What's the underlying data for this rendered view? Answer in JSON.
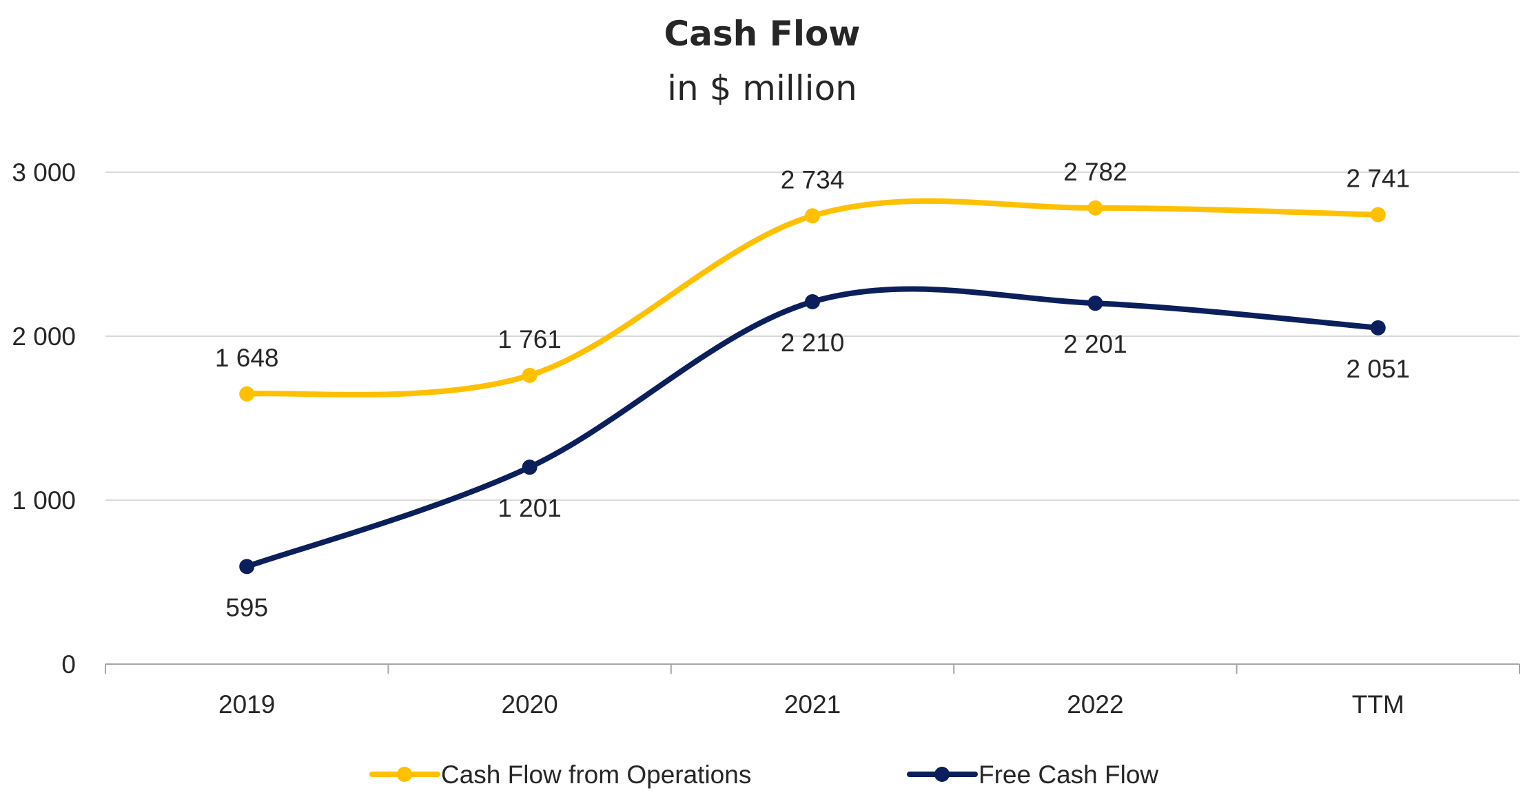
{
  "chart_data": {
    "type": "line",
    "title": "Cash Flow",
    "subtitle": "in $ million",
    "categories": [
      "2019",
      "2020",
      "2021",
      "2022",
      "TTM"
    ],
    "ylim": [
      0,
      3000
    ],
    "yticks": [
      0,
      1000,
      2000,
      3000
    ],
    "ytick_labels": [
      "0",
      "1 000",
      "2 000",
      "3 000"
    ],
    "grid": true,
    "legend_position": "bottom",
    "series": [
      {
        "name": "Cash Flow from Operations",
        "color": "#FFC000",
        "values": [
          1648,
          1761,
          2734,
          2782,
          2741
        ],
        "labels": [
          "1 648",
          "1 761",
          "2 734",
          "2 782",
          "2 741"
        ]
      },
      {
        "name": "Free Cash Flow",
        "color": "#0B1F5C",
        "values": [
          595,
          1201,
          2210,
          2201,
          2051
        ],
        "labels": [
          "595",
          "1 201",
          "2 210",
          "2 201",
          "2 051"
        ]
      }
    ]
  }
}
